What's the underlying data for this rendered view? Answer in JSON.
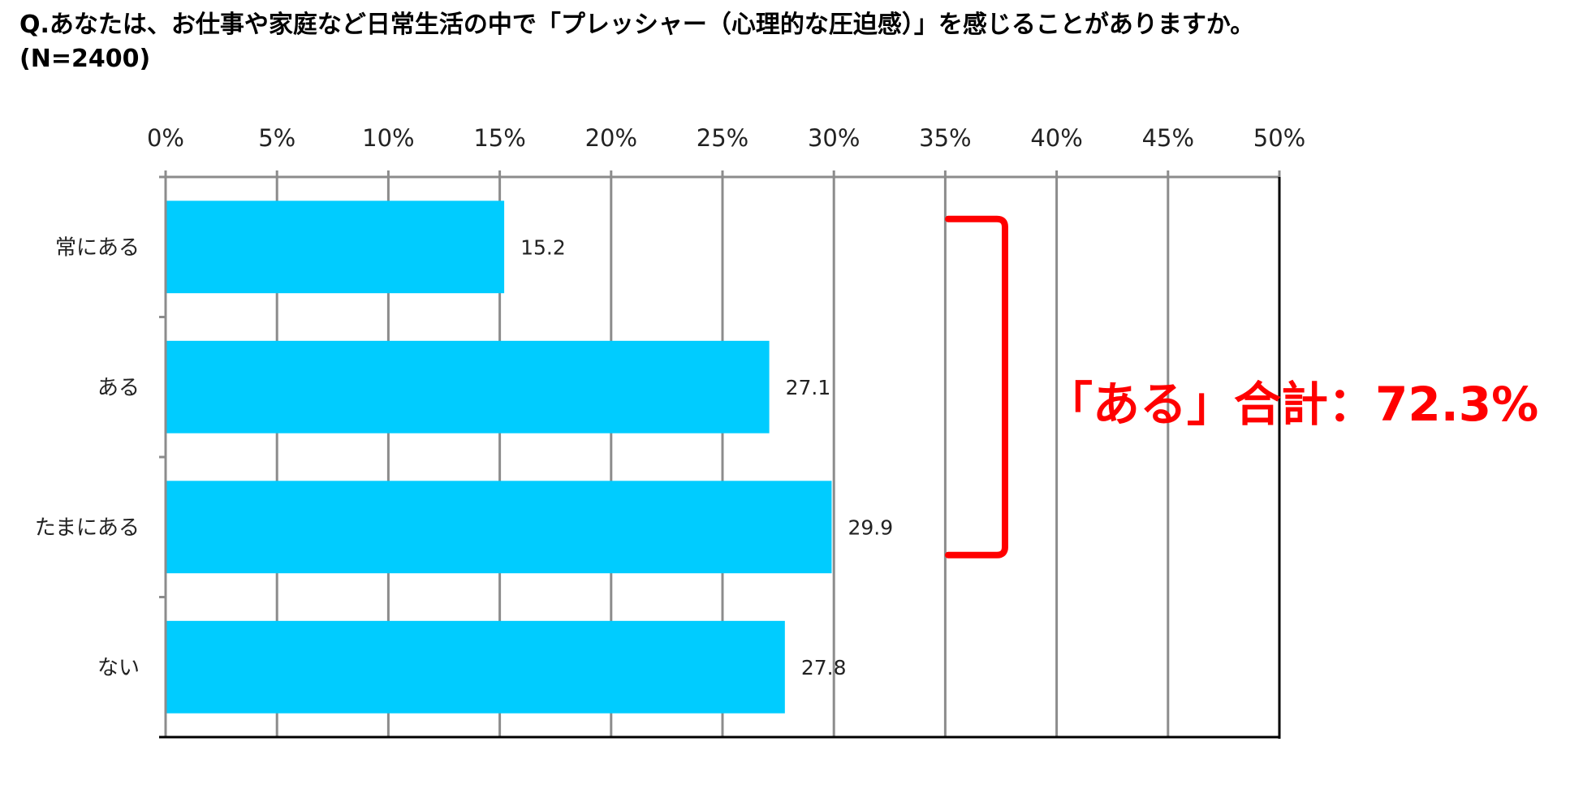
{
  "title_line1": "Q.あなたは、お仕事や家庭など日常生活の中で「プレッシャー（心理的な圧迫感）」を感じることがありますか。",
  "title_line2": "(N=2400)",
  "chart_data": {
    "type": "bar",
    "orientation": "horizontal",
    "categories": [
      "常にある",
      "ある",
      "たまにある",
      "ない"
    ],
    "values": [
      15.2,
      27.1,
      29.9,
      27.8
    ],
    "data_labels": [
      "15.2",
      "27.1",
      "29.9",
      "27.8"
    ],
    "x_ticks": [
      "0%",
      "5%",
      "10%",
      "15%",
      "20%",
      "25%",
      "30%",
      "35%",
      "40%",
      "45%",
      "50%"
    ],
    "xlim": [
      0,
      50
    ],
    "x_axis_position": "top",
    "grid": true,
    "legend": "none",
    "bar_color": "#00CCFF",
    "annotation": {
      "text": "「ある」合計：72.3%",
      "color": "#FF0000",
      "brackets_categories": [
        "常にある",
        "ある",
        "たまにある"
      ]
    }
  }
}
